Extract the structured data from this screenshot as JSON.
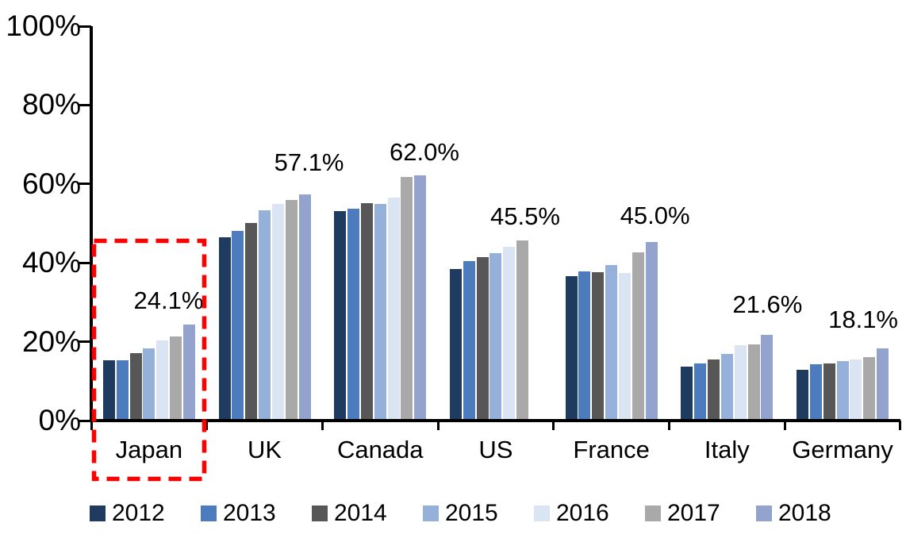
{
  "chart_data": {
    "type": "bar",
    "title": "",
    "xlabel": "",
    "ylabel": "",
    "ylim": [
      0,
      100
    ],
    "ytick_labels": [
      "0%",
      "20%",
      "40%",
      "60%",
      "80%",
      "100%"
    ],
    "grid": false,
    "legend_position": "bottom",
    "categories": [
      "Japan",
      "UK",
      "Canada",
      "US",
      "France",
      "Italy",
      "Germany"
    ],
    "series": [
      {
        "name": "2012",
        "color": "#1F3B60",
        "values": [
          15.0,
          46.3,
          53.0,
          38.3,
          36.5,
          13.4,
          12.6
        ]
      },
      {
        "name": "2013",
        "color": "#4C7CBD",
        "values": [
          15.1,
          47.8,
          53.5,
          40.2,
          37.7,
          14.2,
          14.0
        ]
      },
      {
        "name": "2014",
        "color": "#575757",
        "values": [
          16.9,
          49.8,
          54.9,
          41.2,
          37.5,
          15.3,
          14.3
        ]
      },
      {
        "name": "2015",
        "color": "#96B1D9",
        "values": [
          18.1,
          53.2,
          54.8,
          42.3,
          39.2,
          16.8,
          14.8
        ]
      },
      {
        "name": "2016",
        "color": "#DBE4F2",
        "values": [
          20.1,
          54.8,
          56.3,
          43.8,
          37.3,
          19.0,
          15.3
        ]
      },
      {
        "name": "2017",
        "color": "#A9A9A9",
        "values": [
          21.2,
          55.8,
          61.6,
          45.5,
          42.4,
          19.2,
          15.9
        ]
      },
      {
        "name": "2018",
        "color": "#94A3CD",
        "values": [
          24.1,
          57.1,
          62.0,
          null,
          45.0,
          21.6,
          18.1
        ]
      }
    ],
    "annotations": [
      {
        "category": "Japan",
        "text": "24.1%"
      },
      {
        "category": "UK",
        "text": "57.1%"
      },
      {
        "category": "Canada",
        "text": "62.0%"
      },
      {
        "category": "US",
        "text": "45.5%"
      },
      {
        "category": "France",
        "text": "45.0%"
      },
      {
        "category": "Italy",
        "text": "21.6%"
      },
      {
        "category": "Germany",
        "text": "18.1%"
      }
    ],
    "highlight": {
      "category": "Japan",
      "shape": "dashed-rectangle",
      "color": "#FF0000"
    }
  }
}
